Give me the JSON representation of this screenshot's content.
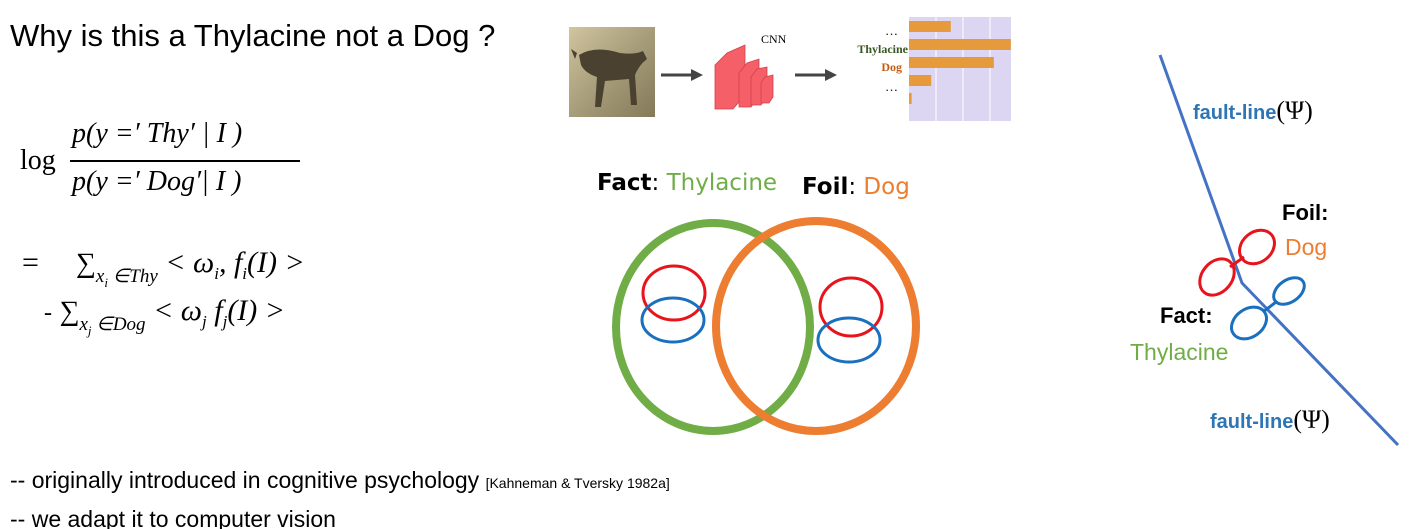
{
  "title": "Why is this a Thylacine not a Dog ?",
  "equation": {
    "log": "log",
    "numerator": "p(y =′ Thy′ | I )",
    "denominator": "p(y =′ Dog′| I )",
    "equals": "=",
    "sum1_sub": "x",
    "sum1_subsub": "i",
    "sum1_set": " ∈Thy",
    "sum1_body": "< ω",
    "sum1_body_sub": "i",
    "sum1_body2": ", f",
    "sum1_body2_sub": "i",
    "sum1_body3": "(I) >",
    "minus": "-",
    "sum2_sub": "x",
    "sum2_subsub": "j",
    "sum2_set": " ∈Dog",
    "sum2_body": "< ω",
    "sum2_body_sub": "j",
    "sum2_body2": " f",
    "sum2_body2_sub": "j",
    "sum2_body3": "(I) >",
    "sigma": "∑"
  },
  "pipeline": {
    "cnn_label": "CNN",
    "dots_top": "…",
    "thylacine_label": "Thylacine",
    "dog_label": "Dog",
    "dots_bottom": "…",
    "bar_color": "#e69a3c",
    "bar_values": [
      0.32,
      0.78,
      0.65,
      0.17,
      0.02
    ]
  },
  "venn": {
    "fact_label": "Fact",
    "fact_sep": ":",
    "fact_value": "Thylacine",
    "foil_label": "Foil",
    "foil_sep": ":",
    "foil_value": "Dog",
    "fact_color": "#70ad47",
    "foil_color": "#ed7d31",
    "red": "#e8141c",
    "blue": "#1a6fbf"
  },
  "faultline": {
    "top_label": "fault-line",
    "bottom_label": "fault-line",
    "psi": "(Ψ)",
    "foil_label": "Foil:",
    "foil_value": "Dog",
    "fact_label": "Fact:",
    "fact_value": "Thylacine",
    "line_color": "#4472c4"
  },
  "bullets": {
    "line1": "-- originally introduced in cognitive psychology ",
    "line1_cite": "[Kahneman & Tversky 1982a]",
    "line2": "-- we adapt it to computer vision"
  }
}
